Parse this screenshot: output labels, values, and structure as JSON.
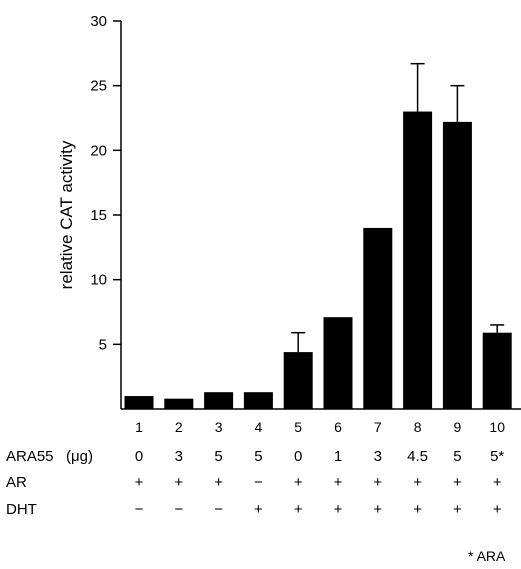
{
  "chart_data": {
    "type": "bar",
    "ylabel": "relative CAT activity",
    "ylim": [
      0,
      30
    ],
    "yticks": [
      5,
      10,
      15,
      20,
      25,
      30
    ],
    "categories": [
      "1",
      "2",
      "3",
      "4",
      "5",
      "6",
      "7",
      "8",
      "9",
      "10"
    ],
    "values": [
      1.0,
      0.8,
      1.3,
      1.3,
      4.4,
      7.1,
      14.0,
      23.0,
      22.2,
      5.9
    ],
    "error": [
      0,
      0,
      0,
      0,
      1.5,
      0,
      0,
      3.7,
      2.8,
      0.6
    ],
    "bar_color": "#000000",
    "conditions": [
      {
        "label": "ARA55",
        "unit": "(μg)",
        "values": [
          "0",
          "3",
          "5",
          "5",
          "0",
          "1",
          "3",
          "4.5",
          "5",
          "5*"
        ]
      },
      {
        "label": "AR",
        "values": [
          "+",
          "+",
          "+",
          "−",
          "+",
          "+",
          "+",
          "+",
          "+",
          "+"
        ]
      },
      {
        "label": "DHT",
        "values": [
          "−",
          "−",
          "−",
          "+",
          "+",
          "+",
          "+",
          "+",
          "+",
          "+"
        ]
      }
    ],
    "footnote": "* ARA"
  }
}
